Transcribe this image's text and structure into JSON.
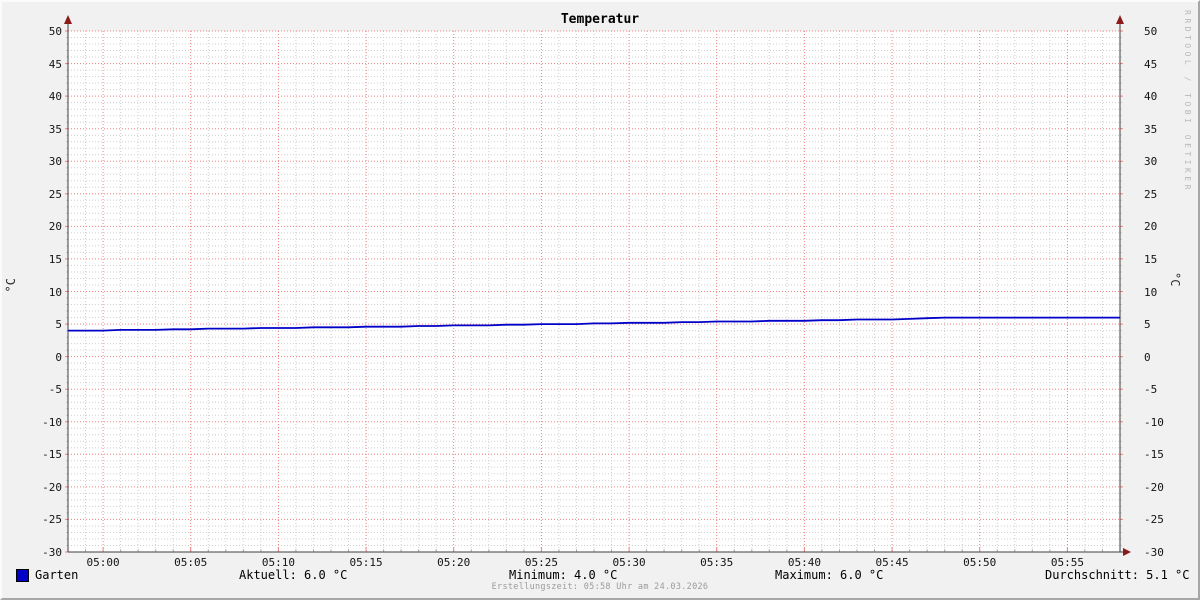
{
  "title": "Temperatur",
  "axis_unit_left": "°C",
  "axis_unit_right": "°C",
  "watermark": "RRDTOOL / TOBI OETIKER",
  "legend": {
    "series_label": "Garten",
    "swatch_color": "#0000c8"
  },
  "stats": {
    "aktuell": "Aktuell: 6.0 °C",
    "minimum": "Minimum: 4.0 °C",
    "maximum": "Maximum: 6.0 °C",
    "durchschnitt": "Durchschnitt: 5.1 °C"
  },
  "creation": "Erstellungszeit: 05:58 Uhr am 24.03.2026",
  "chart_data": {
    "type": "line",
    "title": "Temperatur",
    "ylabel": "°C",
    "ylim": [
      -30,
      50
    ],
    "y_major_step": 5,
    "y_minor_step": 1,
    "x_range": [
      "04:58",
      "05:58"
    ],
    "x_minor_step_minutes": 1,
    "x_major_step_minutes": 5,
    "grid": true,
    "legend_position": "bottom-left",
    "y_ticks": [
      {
        "v": 50,
        "label": "50"
      },
      {
        "v": 45,
        "label": "45"
      },
      {
        "v": 40,
        "label": "40"
      },
      {
        "v": 35,
        "label": "35"
      },
      {
        "v": 30,
        "label": "30"
      },
      {
        "v": 25,
        "label": "25"
      },
      {
        "v": 20,
        "label": "20"
      },
      {
        "v": 15,
        "label": "15"
      },
      {
        "v": 10,
        "label": "10"
      },
      {
        "v": 5,
        "label": "5"
      },
      {
        "v": 0,
        "label": "0"
      },
      {
        "v": -5,
        "label": "-5"
      },
      {
        "v": -10,
        "label": "-10"
      },
      {
        "v": -15,
        "label": "-15"
      },
      {
        "v": -20,
        "label": "-20"
      },
      {
        "v": -25,
        "label": "-25"
      },
      {
        "v": -30,
        "label": "-30"
      }
    ],
    "x_ticks": [
      {
        "t": 2,
        "label": "05:00"
      },
      {
        "t": 7,
        "label": "05:05"
      },
      {
        "t": 12,
        "label": "05:10"
      },
      {
        "t": 17,
        "label": "05:15"
      },
      {
        "t": 22,
        "label": "05:20"
      },
      {
        "t": 27,
        "label": "05:25"
      },
      {
        "t": 32,
        "label": "05:30"
      },
      {
        "t": 37,
        "label": "05:35"
      },
      {
        "t": 42,
        "label": "05:40"
      },
      {
        "t": 47,
        "label": "05:45"
      },
      {
        "t": 52,
        "label": "05:50"
      },
      {
        "t": 57,
        "label": "05:55"
      }
    ],
    "series": [
      {
        "name": "Garten",
        "color": "#0000c8",
        "start": "04:58",
        "step_minutes": 1,
        "values": [
          4.0,
          4.0,
          4.0,
          4.1,
          4.1,
          4.1,
          4.2,
          4.2,
          4.3,
          4.3,
          4.3,
          4.4,
          4.4,
          4.4,
          4.5,
          4.5,
          4.5,
          4.6,
          4.6,
          4.6,
          4.7,
          4.7,
          4.8,
          4.8,
          4.8,
          4.9,
          4.9,
          5.0,
          5.0,
          5.0,
          5.1,
          5.1,
          5.2,
          5.2,
          5.2,
          5.3,
          5.3,
          5.4,
          5.4,
          5.4,
          5.5,
          5.5,
          5.5,
          5.6,
          5.6,
          5.7,
          5.7,
          5.7,
          5.8,
          5.9,
          6.0,
          6.0,
          6.0,
          6.0,
          6.0,
          6.0,
          6.0,
          6.0,
          6.0,
          6.0,
          6.0
        ]
      }
    ],
    "summary": {
      "aktuell": 6.0,
      "minimum": 4.0,
      "maximum": 6.0,
      "durchschnitt": 5.1
    },
    "colors": {
      "line": "#0000c8",
      "grid_major": "#f08080",
      "grid_minor": "#cfcfcf",
      "axis": "#3f3f3f",
      "arrow": "#8b1a1a",
      "canvas": "#ffffff",
      "background": "#f1f1f1"
    }
  }
}
